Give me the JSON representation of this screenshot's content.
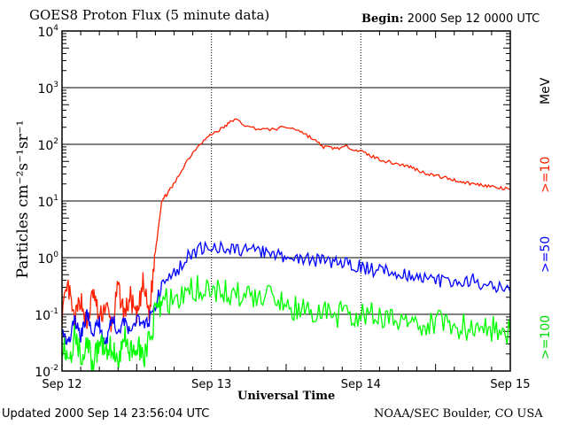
{
  "header": {
    "title": "GOES8 Proton Flux (5 minute data)",
    "begin_label": "Begin:",
    "begin_value": "2000 Sep 12 0000 UTC"
  },
  "footer": {
    "updated": "Updated 2000 Sep 14 23:56:04 UTC",
    "source": "NOAA/SEC Boulder, CO USA"
  },
  "chart_data": {
    "type": "line",
    "title": "GOES8 Proton Flux (5 minute data)",
    "xlabel": "Universal Time",
    "ylabel": "Particles cm⁻²s⁻¹sr⁻¹",
    "yscale": "log",
    "ylim": [
      0.01,
      10000
    ],
    "xlim_hours": [
      0,
      72
    ],
    "x_ticks": [
      {
        "h": 0,
        "label": "Sep 12"
      },
      {
        "h": 24,
        "label": "Sep 13"
      },
      {
        "h": 48,
        "label": "Sep 14"
      },
      {
        "h": 72,
        "label": "Sep 15"
      }
    ],
    "y_ticks": [
      {
        "exp": -2
      },
      {
        "exp": -1
      },
      {
        "exp": 0
      },
      {
        "exp": 1
      },
      {
        "exp": 2
      },
      {
        "exp": 3
      },
      {
        "exp": 4
      }
    ],
    "unit_label": "MeV",
    "grid": "horizontal at decades",
    "series": [
      {
        "name": ">=10",
        "color": "#ff2000",
        "x": [
          0,
          1,
          2,
          3,
          4,
          5,
          6,
          7,
          8,
          9,
          10,
          11,
          12,
          13,
          14,
          15,
          16,
          17,
          18,
          20,
          22,
          24,
          26,
          27.7,
          30,
          33,
          36,
          38,
          40,
          42,
          44,
          46,
          48,
          50,
          52,
          54,
          56,
          58,
          60,
          62,
          64,
          66,
          68,
          70,
          72
        ],
        "y": [
          0.1,
          0.3,
          0.07,
          0.2,
          0.06,
          0.25,
          0.08,
          0.15,
          0.06,
          0.3,
          0.1,
          0.2,
          0.08,
          0.35,
          0.1,
          1.3,
          10,
          14,
          20,
          50,
          100,
          150,
          200,
          280,
          200,
          180,
          200,
          180,
          130,
          90,
          85,
          90,
          75,
          60,
          50,
          45,
          40,
          32,
          28,
          25,
          22,
          20,
          19,
          17,
          16
        ]
      },
      {
        "name": ">=50",
        "color": "#0000ff",
        "x": [
          0,
          1,
          2,
          3,
          4,
          5,
          6,
          7,
          8,
          9,
          10,
          11,
          12,
          13,
          14,
          15,
          16,
          18,
          20,
          22,
          24,
          26,
          28,
          30,
          32,
          34,
          36,
          38,
          40,
          42,
          44,
          46,
          48,
          50,
          52,
          54,
          56,
          58,
          60,
          62,
          64,
          66,
          68,
          70,
          72
        ],
        "y": [
          0.06,
          0.03,
          0.08,
          0.04,
          0.1,
          0.05,
          0.07,
          0.03,
          0.09,
          0.05,
          0.08,
          0.04,
          0.1,
          0.06,
          0.08,
          0.15,
          0.3,
          0.5,
          1.0,
          1.4,
          1.5,
          1.5,
          1.4,
          1.3,
          1.3,
          1.1,
          1.0,
          1.0,
          0.9,
          0.9,
          0.8,
          0.8,
          0.7,
          0.6,
          0.6,
          0.55,
          0.5,
          0.45,
          0.4,
          0.35,
          0.35,
          0.4,
          0.3,
          0.3,
          0.25
        ]
      },
      {
        "name": ">=100",
        "color": "#00ff00",
        "x": [
          0,
          1,
          2,
          3,
          4,
          5,
          6,
          7,
          8,
          9,
          10,
          11,
          12,
          13,
          14,
          15,
          16,
          18,
          20,
          22,
          24,
          26,
          28,
          30,
          32,
          34,
          36,
          38,
          40,
          42,
          44,
          46,
          48,
          50,
          52,
          54,
          56,
          58,
          60,
          62,
          64,
          66,
          68,
          70,
          72
        ],
        "y": [
          0.03,
          0.015,
          0.04,
          0.02,
          0.03,
          0.012,
          0.035,
          0.02,
          0.03,
          0.015,
          0.04,
          0.02,
          0.03,
          0.015,
          0.035,
          0.1,
          0.15,
          0.2,
          0.25,
          0.3,
          0.28,
          0.25,
          0.22,
          0.2,
          0.2,
          0.18,
          0.15,
          0.12,
          0.1,
          0.12,
          0.1,
          0.1,
          0.1,
          0.1,
          0.09,
          0.08,
          0.08,
          0.07,
          0.07,
          0.06,
          0.06,
          0.06,
          0.06,
          0.05,
          0.05
        ]
      }
    ]
  }
}
